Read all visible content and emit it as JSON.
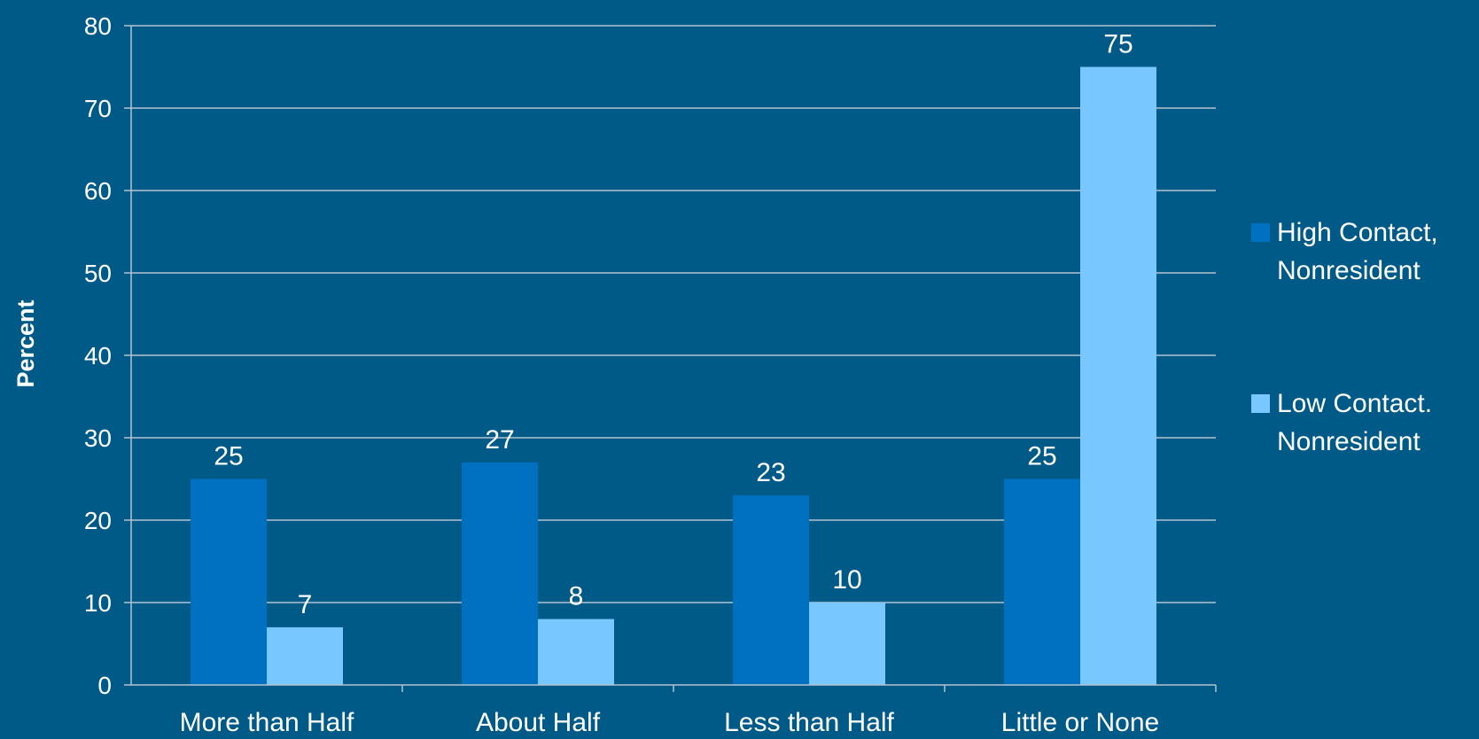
{
  "chart_data": {
    "type": "bar",
    "categories": [
      "More than Half",
      "About Half",
      "Less than Half",
      "Little or None"
    ],
    "series": [
      {
        "name": "High Contact, Nonresident",
        "values": [
          25,
          27,
          23,
          25
        ],
        "color": "#0070c0"
      },
      {
        "name": "Low Contact. Nonresident",
        "values": [
          7,
          8,
          10,
          75
        ],
        "color": "#78c8ff"
      }
    ],
    "data_labels": [
      [
        "25",
        "27",
        "23",
        "25"
      ],
      [
        "7",
        "8",
        "10",
        "75"
      ]
    ],
    "ylabel": "Percent",
    "ylim": [
      0,
      80
    ],
    "yticks": [
      0,
      10,
      20,
      30,
      40,
      50,
      60,
      70,
      80
    ],
    "grid": true,
    "legend_position": "right",
    "legend": [
      {
        "lines": [
          "High Contact,",
          "Nonresident"
        ]
      },
      {
        "lines": [
          "Low Contact.",
          "Nonresident"
        ]
      }
    ],
    "colors": {
      "background": "#005a87",
      "grid": "#b3c3d1",
      "text": "#ffffff"
    }
  }
}
